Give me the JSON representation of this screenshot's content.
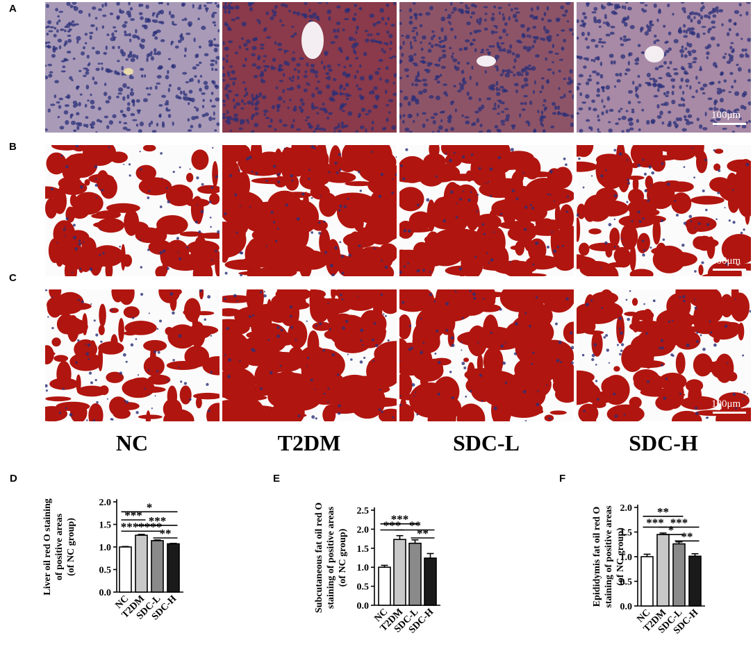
{
  "panels": {
    "A": "A",
    "B": "B",
    "C": "C",
    "D": "D",
    "E": "E",
    "F": "F"
  },
  "micrographs": {
    "scale_bar_label": "100μm",
    "group_labels": [
      "NC",
      "T2DM",
      "SDC-L",
      "SDC-H"
    ]
  },
  "colors": {
    "stain_red": "#b0150f",
    "nucleus_blue": "#2a2f78",
    "liver_bg": "#9c7a9a",
    "bar_fills": [
      "#ffffff",
      "#c8c8c8",
      "#8a8a8a",
      "#1a1a1a"
    ]
  },
  "chart_data": [
    {
      "type": "bar",
      "panel": "D",
      "ylabel": [
        "Liver oil red O staining",
        "of positive areas",
        "(of NC group)"
      ],
      "categories": [
        "NC",
        "T2DM",
        "SDC-L",
        "SDC-H"
      ],
      "values": [
        1.0,
        1.26,
        1.14,
        1.07
      ],
      "errors": [
        0.01,
        0.02,
        0.015,
        0.01
      ],
      "ylim": [
        0,
        2.0
      ],
      "yticks": [
        "0.0",
        "0.5",
        "1.0",
        "1.5",
        "2.0"
      ],
      "ytick_values": [
        0,
        0.5,
        1.0,
        1.5,
        2.0
      ],
      "significance": [
        {
          "from": 0,
          "to": 3,
          "y": 1.78,
          "label": "*"
        },
        {
          "from": 0,
          "to": 1,
          "y": 1.6,
          "label": "***"
        },
        {
          "from": 1,
          "to": 3,
          "y": 1.48,
          "label": "***"
        },
        {
          "from": 0,
          "to": 2,
          "y": 1.35,
          "label": "*******"
        },
        {
          "from": 2,
          "to": 3,
          "y": 1.2,
          "label": "**"
        }
      ]
    },
    {
      "type": "bar",
      "panel": "E",
      "ylabel": [
        "Subcutaneous fat oil red O",
        "staining of positive areas",
        "(of NC group)"
      ],
      "categories": [
        "NC",
        "T2DM",
        "SDC-L",
        "SDC-H"
      ],
      "values": [
        1.0,
        1.73,
        1.63,
        1.24
      ],
      "errors": [
        0.05,
        0.1,
        0.09,
        0.12
      ],
      "ylim": [
        0,
        2.5
      ],
      "yticks": [
        "0.0",
        "0.5",
        "1.0",
        "1.5",
        "2.0",
        "2.5"
      ],
      "ytick_values": [
        0,
        0.5,
        1.0,
        1.5,
        2.0,
        2.5
      ],
      "significance": [
        {
          "from": 0,
          "to": 2,
          "y": 2.14,
          "label": "***"
        },
        {
          "from": 0,
          "to": 1,
          "y": 1.98,
          "label": "***"
        },
        {
          "from": 1,
          "to": 3,
          "y": 1.98,
          "label": "**"
        },
        {
          "from": 2,
          "to": 3,
          "y": 1.77,
          "label": "**"
        }
      ]
    },
    {
      "type": "bar",
      "panel": "F",
      "ylabel": [
        "Epididymis fat oil red O",
        "staining of positive areas",
        "(of NC group)"
      ],
      "categories": [
        "NC",
        "T2DM",
        "SDC-L",
        "SDC-H"
      ],
      "values": [
        1.0,
        1.45,
        1.26,
        1.01
      ],
      "errors": [
        0.05,
        0.03,
        0.04,
        0.05
      ],
      "ylim": [
        0,
        2.0
      ],
      "yticks": [
        "0.0",
        "0.5",
        "1.0",
        "1.5",
        "2.0"
      ],
      "ytick_values": [
        0,
        0.5,
        1.0,
        1.5,
        2.0
      ],
      "significance": [
        {
          "from": 0,
          "to": 2,
          "y": 1.82,
          "label": "**"
        },
        {
          "from": 0,
          "to": 1,
          "y": 1.6,
          "label": "***"
        },
        {
          "from": 1,
          "to": 3,
          "y": 1.6,
          "label": "***"
        },
        {
          "from": 1,
          "to": 2,
          "y": 1.45,
          "label": "*"
        },
        {
          "from": 2,
          "to": 3,
          "y": 1.32,
          "label": "**"
        }
      ]
    }
  ]
}
